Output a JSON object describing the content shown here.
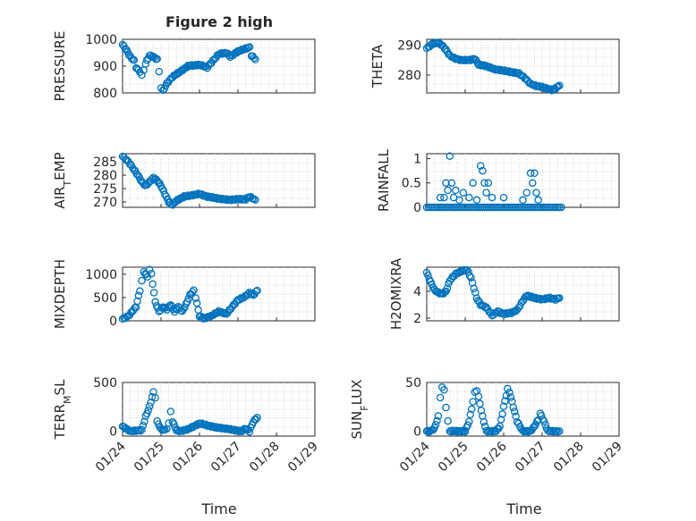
{
  "figure": {
    "title": "Figure 2 high",
    "xlabel": "Time"
  },
  "colors": {
    "marker": "#0072BD",
    "axis": "#262626",
    "grid": "#c8c8c8"
  },
  "x_ticks": [
    "01/24",
    "01/25",
    "01/26",
    "01/27",
    "01/28",
    "01/29"
  ],
  "chart_data": [
    {
      "type": "scatter",
      "marker": "circle",
      "ylabel": "PRESSURE",
      "xlim": [
        0,
        5
      ],
      "ylim": [
        800,
        1000
      ],
      "yticks": [
        800,
        900,
        1000
      ],
      "ytick_labels": [
        "800",
        "900",
        "1000"
      ],
      "grid": true,
      "anchors": [
        [
          0,
          980
        ],
        [
          0.1,
          960
        ],
        [
          0.2,
          935
        ],
        [
          0.3,
          920
        ],
        [
          0.35,
          895
        ],
        [
          0.45,
          880
        ],
        [
          0.5,
          865
        ],
        [
          0.55,
          885
        ],
        [
          0.6,
          910
        ],
        [
          0.7,
          940
        ],
        [
          0.8,
          935
        ],
        [
          0.9,
          925
        ],
        [
          0.95,
          880
        ],
        [
          1.0,
          820
        ],
        [
          1.05,
          808
        ],
        [
          1.15,
          835
        ],
        [
          1.3,
          860
        ],
        [
          1.5,
          880
        ],
        [
          1.7,
          900
        ],
        [
          2.0,
          905
        ],
        [
          2.2,
          895
        ],
        [
          2.35,
          920
        ],
        [
          2.5,
          945
        ],
        [
          2.7,
          950
        ],
        [
          2.8,
          935
        ],
        [
          3.0,
          955
        ],
        [
          3.2,
          965
        ],
        [
          3.3,
          970
        ],
        [
          3.35,
          940
        ],
        [
          3.45,
          925
        ]
      ]
    },
    {
      "type": "scatter",
      "marker": "circle",
      "ylabel": "THETA",
      "xlim": [
        0,
        5
      ],
      "ylim": [
        274,
        292
      ],
      "yticks": [
        280,
        290
      ],
      "ytick_labels": [
        "280",
        "290"
      ],
      "grid": true,
      "anchors": [
        [
          0,
          289
        ],
        [
          0.15,
          290.5
        ],
        [
          0.3,
          290.8
        ],
        [
          0.4,
          290
        ],
        [
          0.5,
          288.5
        ],
        [
          0.6,
          286.5
        ],
        [
          0.75,
          285.5
        ],
        [
          0.9,
          285
        ],
        [
          1.1,
          285
        ],
        [
          1.25,
          285.5
        ],
        [
          1.35,
          283.5
        ],
        [
          1.55,
          283
        ],
        [
          1.75,
          282
        ],
        [
          2.0,
          281.5
        ],
        [
          2.2,
          281
        ],
        [
          2.4,
          280.5
        ],
        [
          2.55,
          279
        ],
        [
          2.7,
          277
        ],
        [
          2.85,
          276.3
        ],
        [
          3.0,
          276
        ],
        [
          3.1,
          275.5
        ],
        [
          3.25,
          275
        ],
        [
          3.35,
          275.5
        ],
        [
          3.45,
          276.5
        ]
      ]
    },
    {
      "type": "scatter",
      "marker": "circle",
      "ylabel": "AIR_TEMP",
      "ylabel_parts": [
        "AIR",
        "T",
        "EMP"
      ],
      "xlim": [
        0,
        5
      ],
      "ylim": [
        268,
        288
      ],
      "yticks": [
        270,
        275,
        280,
        285
      ],
      "ytick_labels": [
        "270",
        "275",
        "280",
        "285"
      ],
      "grid": true,
      "anchors": [
        [
          0,
          287
        ],
        [
          0.15,
          285
        ],
        [
          0.3,
          282
        ],
        [
          0.4,
          280
        ],
        [
          0.5,
          277.5
        ],
        [
          0.6,
          276
        ],
        [
          0.7,
          277.5
        ],
        [
          0.8,
          279
        ],
        [
          0.9,
          278
        ],
        [
          1.0,
          276
        ],
        [
          1.1,
          273
        ],
        [
          1.2,
          270
        ],
        [
          1.3,
          269
        ],
        [
          1.4,
          270.5
        ],
        [
          1.6,
          272
        ],
        [
          1.8,
          272.5
        ],
        [
          2.0,
          273
        ],
        [
          2.2,
          272
        ],
        [
          2.4,
          271.5
        ],
        [
          2.6,
          271
        ],
        [
          2.8,
          270.8
        ],
        [
          3.0,
          271
        ],
        [
          3.2,
          271
        ],
        [
          3.3,
          272
        ],
        [
          3.45,
          270.8
        ]
      ]
    },
    {
      "type": "scatter",
      "marker": "circle",
      "ylabel": "RAINFALL",
      "xlim": [
        0,
        5
      ],
      "ylim": [
        0,
        1.1
      ],
      "yticks": [
        0,
        0.5,
        1
      ],
      "ytick_labels": [
        "0",
        "0.5",
        "1"
      ],
      "grid": true,
      "nonzero": [
        [
          0.35,
          0.2
        ],
        [
          0.45,
          0.2
        ],
        [
          0.5,
          0.5
        ],
        [
          0.55,
          0.35
        ],
        [
          0.6,
          1.05
        ],
        [
          0.65,
          0.5
        ],
        [
          0.7,
          0.2
        ],
        [
          0.75,
          0.35
        ],
        [
          0.85,
          0.15
        ],
        [
          0.95,
          0.3
        ],
        [
          1.1,
          0.2
        ],
        [
          1.2,
          0.5
        ],
        [
          1.3,
          0.15
        ],
        [
          1.4,
          0.85
        ],
        [
          1.45,
          0.75
        ],
        [
          1.5,
          0.5
        ],
        [
          1.55,
          0.3
        ],
        [
          1.6,
          0.5
        ],
        [
          1.7,
          0.2
        ],
        [
          2.0,
          0.2
        ],
        [
          2.5,
          0.15
        ],
        [
          2.6,
          0.3
        ],
        [
          2.7,
          0.7
        ],
        [
          2.75,
          0.5
        ],
        [
          2.8,
          0.7
        ],
        [
          2.85,
          0.3
        ],
        [
          2.9,
          0.15
        ]
      ]
    },
    {
      "type": "scatter",
      "marker": "circle",
      "ylabel": "MIXDEPTH",
      "xlim": [
        0,
        5
      ],
      "ylim": [
        0,
        1150
      ],
      "yticks": [
        0,
        500,
        1000
      ],
      "ytick_labels": [
        "0",
        "500",
        "1000"
      ],
      "grid": true,
      "anchors": [
        [
          0,
          40
        ],
        [
          0.15,
          100
        ],
        [
          0.25,
          200
        ],
        [
          0.35,
          300
        ],
        [
          0.45,
          650
        ],
        [
          0.5,
          850
        ],
        [
          0.55,
          1050
        ],
        [
          0.65,
          950
        ],
        [
          0.7,
          1100
        ],
        [
          0.75,
          1000
        ],
        [
          0.85,
          400
        ],
        [
          0.95,
          200
        ],
        [
          1.05,
          300
        ],
        [
          1.15,
          250
        ],
        [
          1.25,
          350
        ],
        [
          1.35,
          200
        ],
        [
          1.45,
          300
        ],
        [
          1.55,
          200
        ],
        [
          1.65,
          350
        ],
        [
          1.75,
          550
        ],
        [
          1.85,
          650
        ],
        [
          1.9,
          500
        ],
        [
          2.0,
          100
        ],
        [
          2.1,
          50
        ],
        [
          2.3,
          100
        ],
        [
          2.5,
          200
        ],
        [
          2.7,
          150
        ],
        [
          2.85,
          300
        ],
        [
          3.0,
          450
        ],
        [
          3.15,
          500
        ],
        [
          3.3,
          600
        ],
        [
          3.4,
          550
        ],
        [
          3.5,
          650
        ]
      ]
    },
    {
      "type": "scatter",
      "marker": "circle",
      "ylabel": "H2OMIXRA",
      "xlim": [
        0,
        5
      ],
      "ylim": [
        1.8,
        5.8
      ],
      "yticks": [
        2,
        4
      ],
      "ytick_labels": [
        "2",
        "4"
      ],
      "grid": true,
      "anchors": [
        [
          0,
          5.4
        ],
        [
          0.1,
          4.7
        ],
        [
          0.2,
          4.1
        ],
        [
          0.3,
          3.9
        ],
        [
          0.4,
          3.8
        ],
        [
          0.5,
          4.0
        ],
        [
          0.6,
          4.8
        ],
        [
          0.75,
          5.3
        ],
        [
          0.9,
          5.5
        ],
        [
          1.05,
          5.6
        ],
        [
          1.15,
          5.0
        ],
        [
          1.3,
          3.5
        ],
        [
          1.4,
          3.0
        ],
        [
          1.55,
          2.8
        ],
        [
          1.7,
          2.2
        ],
        [
          1.85,
          2.5
        ],
        [
          2.0,
          2.3
        ],
        [
          2.2,
          2.4
        ],
        [
          2.35,
          2.6
        ],
        [
          2.5,
          3.3
        ],
        [
          2.6,
          3.7
        ],
        [
          2.8,
          3.5
        ],
        [
          3.0,
          3.4
        ],
        [
          3.2,
          3.5
        ],
        [
          3.35,
          3.4
        ],
        [
          3.45,
          3.5
        ]
      ]
    },
    {
      "type": "scatter",
      "marker": "circle",
      "ylabel": "TERR_MSL",
      "ylabel_parts": [
        "TERR",
        "M",
        "SL"
      ],
      "xlim": [
        0,
        5
      ],
      "ylim": [
        -50,
        500
      ],
      "yticks": [
        0,
        500
      ],
      "ytick_labels": [
        "0",
        "500"
      ],
      "grid": true,
      "anchors": [
        [
          0,
          50
        ],
        [
          0.2,
          0
        ],
        [
          0.35,
          5
        ],
        [
          0.5,
          10
        ],
        [
          0.6,
          150
        ],
        [
          0.7,
          250
        ],
        [
          0.8,
          400
        ],
        [
          0.85,
          350
        ],
        [
          0.9,
          100
        ],
        [
          1.0,
          20
        ],
        [
          1.1,
          10
        ],
        [
          1.15,
          30
        ],
        [
          1.2,
          80
        ],
        [
          1.25,
          200
        ],
        [
          1.3,
          100
        ],
        [
          1.4,
          10
        ],
        [
          1.5,
          0
        ],
        [
          1.7,
          20
        ],
        [
          1.9,
          60
        ],
        [
          2.0,
          80
        ],
        [
          2.2,
          60
        ],
        [
          2.4,
          40
        ],
        [
          2.6,
          30
        ],
        [
          2.8,
          20
        ],
        [
          3.0,
          5
        ],
        [
          3.1,
          0
        ],
        [
          3.2,
          30
        ],
        [
          3.3,
          0
        ],
        [
          3.4,
          100
        ],
        [
          3.5,
          140
        ]
      ]
    },
    {
      "type": "scatter",
      "marker": "circle",
      "ylabel": "SUN_FLUX",
      "ylabel_parts": [
        "SUN",
        "F",
        "LUX"
      ],
      "xlim": [
        0,
        5
      ],
      "ylim": [
        -5,
        50
      ],
      "yticks": [
        0,
        50
      ],
      "ytick_labels": [
        "0",
        "50"
      ],
      "grid": true,
      "anchors": [
        [
          0,
          0
        ],
        [
          0.1,
          0
        ],
        [
          0.2,
          3
        ],
        [
          0.3,
          15
        ],
        [
          0.35,
          35
        ],
        [
          0.4,
          45
        ],
        [
          0.45,
          42
        ],
        [
          0.5,
          25
        ],
        [
          0.55,
          10
        ],
        [
          0.6,
          0
        ],
        [
          0.8,
          0
        ],
        [
          1.0,
          0
        ],
        [
          1.1,
          10
        ],
        [
          1.2,
          30
        ],
        [
          1.25,
          40
        ],
        [
          1.3,
          42
        ],
        [
          1.35,
          35
        ],
        [
          1.45,
          15
        ],
        [
          1.55,
          0
        ],
        [
          1.8,
          0
        ],
        [
          1.9,
          5
        ],
        [
          2.0,
          25
        ],
        [
          2.1,
          43
        ],
        [
          2.15,
          40
        ],
        [
          2.25,
          25
        ],
        [
          2.35,
          10
        ],
        [
          2.5,
          0
        ],
        [
          2.7,
          0
        ],
        [
          2.8,
          5
        ],
        [
          2.9,
          12
        ],
        [
          2.95,
          18
        ],
        [
          3.05,
          10
        ],
        [
          3.15,
          0
        ],
        [
          3.3,
          0
        ],
        [
          3.45,
          0
        ]
      ]
    }
  ]
}
